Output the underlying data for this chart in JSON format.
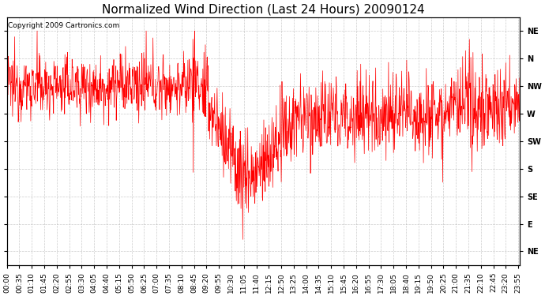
{
  "title": "Normalized Wind Direction (Last 24 Hours) 20090124",
  "copyright_text": "Copyright 2009 Cartronics.com",
  "line_color": "#ff0000",
  "background_color": "#ffffff",
  "grid_color": "#aaaaaa",
  "ytick_labels": [
    "NE",
    "N",
    "NW",
    "W",
    "SW",
    "S",
    "SE",
    "E",
    "NE"
  ],
  "ytick_values": [
    8,
    7,
    6,
    5,
    4,
    3,
    2,
    1,
    0
  ],
  "ylim": [
    -0.5,
    8.5
  ],
  "title_fontsize": 11,
  "tick_fontsize": 7,
  "copyright_fontsize": 6.5
}
